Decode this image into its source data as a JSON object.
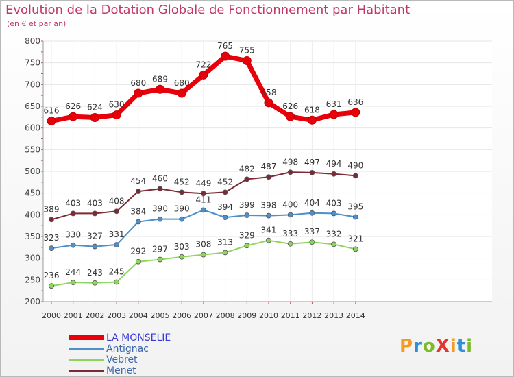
{
  "header": {
    "title": "Evolution de la Dotation Globale de Fonctionnement par Habitant",
    "subtitle": "(en € et par an)"
  },
  "logo": {
    "text": "ProXiti",
    "letters": [
      "P",
      "r",
      "o",
      "X",
      "i",
      "t",
      "i"
    ],
    "colors": [
      "#f59a23",
      "#2f8fd8",
      "#7bbb2a",
      "#e4362c",
      "#f59a23",
      "#2f8fd8",
      "#7bbb2a"
    ]
  },
  "chart_data": {
    "type": "line",
    "title": "Evolution de la Dotation Globale de Fonctionnement par Habitant",
    "subtitle": "(en € et par an)",
    "x": [
      "2000",
      "2001",
      "2002",
      "2003",
      "2004",
      "2005",
      "2006",
      "2007",
      "2008",
      "2009",
      "2010",
      "2011",
      "2012",
      "2013",
      "2014"
    ],
    "ylim": [
      200,
      800
    ],
    "yticks": [
      200,
      250,
      300,
      350,
      400,
      450,
      500,
      550,
      600,
      650,
      700,
      750,
      800
    ],
    "grid": true,
    "legend": "bottom-left",
    "series": [
      {
        "name": "LA MONSELIE",
        "color": "#e8000b",
        "values": [
          616,
          626,
          624,
          630,
          680,
          689,
          680,
          722,
          765,
          755,
          658,
          626,
          618,
          631,
          636
        ]
      },
      {
        "name": "Antignac",
        "color": "#4f8fc9",
        "values": [
          323,
          330,
          327,
          331,
          384,
          390,
          390,
          411,
          394,
          399,
          398,
          400,
          404,
          403,
          395
        ]
      },
      {
        "name": "Vebret",
        "color": "#8fd45e",
        "values": [
          236,
          244,
          243,
          245,
          292,
          297,
          303,
          308,
          313,
          329,
          341,
          333,
          337,
          332,
          321
        ]
      },
      {
        "name": "Menet",
        "color": "#7a2b35",
        "values": [
          389,
          403,
          403,
          408,
          454,
          460,
          452,
          449,
          452,
          482,
          487,
          498,
          497,
          494,
          490
        ]
      }
    ]
  }
}
